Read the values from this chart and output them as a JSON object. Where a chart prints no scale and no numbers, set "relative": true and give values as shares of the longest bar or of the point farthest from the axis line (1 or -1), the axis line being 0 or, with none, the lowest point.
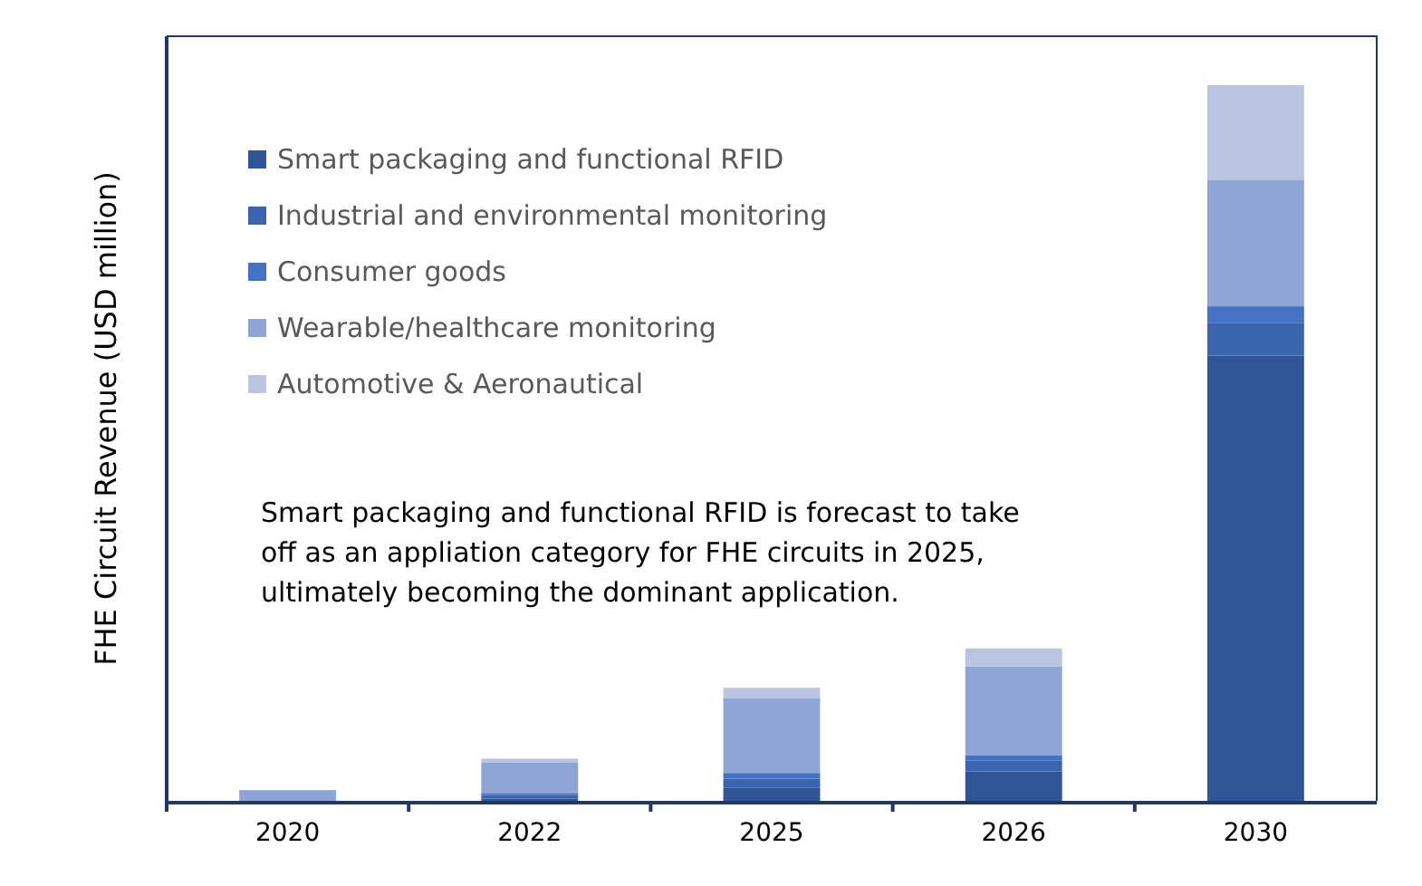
{
  "chart_data": {
    "type": "bar",
    "stacked": true,
    "relative": true,
    "ylabel": "FHE Circuit Revenue (USD million)",
    "categories": [
      "2020",
      "2022",
      "2025",
      "2026",
      "2030"
    ],
    "legend": "top left",
    "annotations": [
      "Smart packaging and functional RFID is forecast to take off as an appliation category for FHE circuits in 2025, ultimately becoming the dominant application."
    ],
    "series": [
      {
        "name": "Smart packaging and functional RFID",
        "color": "#2f5597",
        "values": [
          0,
          0.003,
          0.018,
          0.041,
          0.622
        ]
      },
      {
        "name": "Industrial and environmental monitoring",
        "color": "#3a64ad",
        "values": [
          0,
          0.005,
          0.013,
          0.015,
          0.046
        ]
      },
      {
        "name": "Consumer goods",
        "color": "#4472c4",
        "values": [
          0,
          0.003,
          0.008,
          0.008,
          0.023
        ]
      },
      {
        "name": "Wearable/healthcare monitoring",
        "color": "#8fa5d6",
        "values": [
          0.015,
          0.043,
          0.104,
          0.124,
          0.177
        ]
      },
      {
        "name": "Automotive & Aeronautical",
        "color": "#bac4e3",
        "values": [
          0,
          0.005,
          0.015,
          0.025,
          0.132
        ]
      }
    ]
  }
}
